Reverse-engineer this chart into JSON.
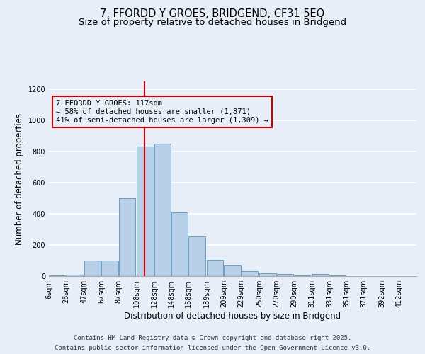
{
  "title": "7, FFORDD Y GROES, BRIDGEND, CF31 5EQ",
  "subtitle": "Size of property relative to detached houses in Bridgend",
  "xlabel": "Distribution of detached houses by size in Bridgend",
  "ylabel": "Number of detached properties",
  "categories": [
    "6sqm",
    "26sqm",
    "47sqm",
    "67sqm",
    "87sqm",
    "108sqm",
    "128sqm",
    "148sqm",
    "168sqm",
    "189sqm",
    "209sqm",
    "229sqm",
    "250sqm",
    "270sqm",
    "290sqm",
    "311sqm",
    "331sqm",
    "351sqm",
    "371sqm",
    "392sqm",
    "412sqm"
  ],
  "bar_heights": [
    5,
    10,
    100,
    100,
    500,
    830,
    850,
    410,
    255,
    105,
    70,
    30,
    20,
    12,
    5,
    12,
    5,
    2,
    1,
    1
  ],
  "bin_starts": [
    6,
    26,
    47,
    67,
    87,
    108,
    128,
    148,
    168,
    189,
    209,
    229,
    250,
    270,
    290,
    311,
    331,
    351,
    371,
    392
  ],
  "bin_width": 20,
  "bar_color": "#b8cfe8",
  "bar_edge_color": "#6a9fc0",
  "vline_x": 117,
  "vline_color": "#cc0000",
  "annotation_text": "7 FFORDD Y GROES: 117sqm\n← 58% of detached houses are smaller (1,871)\n41% of semi-detached houses are larger (1,309) →",
  "annotation_box_facecolor": "#e8eef8",
  "annotation_box_edgecolor": "#cc0000",
  "ylim": [
    0,
    1250
  ],
  "yticks": [
    0,
    200,
    400,
    600,
    800,
    1000,
    1200
  ],
  "footer1": "Contains HM Land Registry data © Crown copyright and database right 2025.",
  "footer2": "Contains public sector information licensed under the Open Government Licence v3.0.",
  "bg_color": "#e8eef8",
  "grid_color": "#ffffff",
  "title_fontsize": 10.5,
  "subtitle_fontsize": 9.5,
  "xlabel_fontsize": 8.5,
  "ylabel_fontsize": 8.5,
  "tick_fontsize": 7,
  "footer_fontsize": 6.5,
  "ann_fontsize": 7.5
}
